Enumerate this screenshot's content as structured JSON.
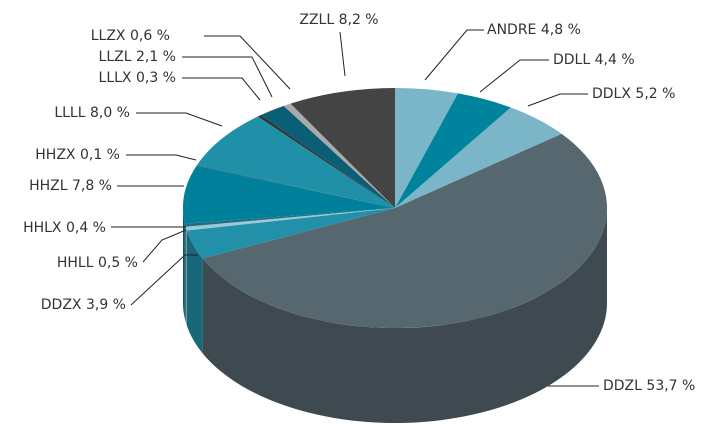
{
  "chart_data": {
    "type": "pie3d",
    "categories": [
      "ANDRE",
      "DDLL",
      "DDLX",
      "DDZL",
      "DDZX",
      "HHLL",
      "HHLX",
      "HHZL",
      "HHZX",
      "LLLL",
      "LLLX",
      "LLZL",
      "LLZX",
      "ZZLL"
    ],
    "values": [
      4.8,
      4.4,
      5.2,
      53.7,
      3.9,
      0.5,
      0.4,
      7.8,
      0.1,
      8.0,
      0.3,
      2.1,
      0.6,
      8.2
    ],
    "value_labels": [
      "4,8 %",
      "4,4 %",
      "5,2 %",
      "53,7 %",
      "3,9 %",
      "0,5 %",
      "0,4 %",
      "7,8 %",
      "0,1 %",
      "8,0 %",
      "0,3 %",
      "2,1 %",
      "0,6 %",
      "8,2 %"
    ],
    "colors": [
      "#7ab5c8",
      "#00849e",
      "#7ab5c8",
      "#56676f",
      "#2190a8",
      "#9cc7d4",
      "#1f6e83",
      "#00809a",
      "#1a5f70",
      "#2090a8",
      "#333333",
      "#0a5e75",
      "#aaaaaa",
      "#444444"
    ]
  }
}
